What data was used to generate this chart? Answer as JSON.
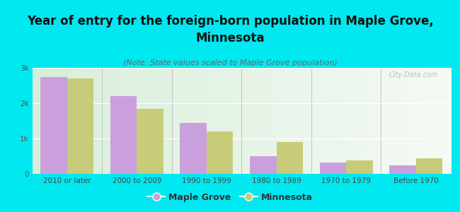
{
  "title": "Year of entry for the foreign-born population in Maple Grove,\nMinnesota",
  "subtitle": "(Note: State values scaled to Maple Grove population)",
  "categories": [
    "2010 or later",
    "2000 to 2009",
    "1990 to 1999",
    "1980 to 1989",
    "1970 to 1979",
    "Before 1970"
  ],
  "maple_grove": [
    2750,
    2200,
    1450,
    500,
    320,
    250
  ],
  "minnesota": [
    2700,
    1850,
    1200,
    900,
    380,
    450
  ],
  "maple_grove_color": "#c9a0dc",
  "minnesota_color": "#c8cc7a",
  "background_color": "#00e8f0",
  "plot_bg_left": "#d8eeda",
  "plot_bg_right": "#f5faf5",
  "ylim": [
    0,
    3000
  ],
  "yticks": [
    0,
    1000,
    2000,
    3000
  ],
  "ytick_labels": [
    "0",
    "1k",
    "2k",
    "3k"
  ],
  "bar_width": 0.38,
  "legend_maple_grove": "Maple Grove",
  "legend_minnesota": "Minnesota",
  "title_fontsize": 12,
  "subtitle_fontsize": 8,
  "tick_fontsize": 7.5,
  "legend_fontsize": 9,
  "watermark": "City-Data.com"
}
